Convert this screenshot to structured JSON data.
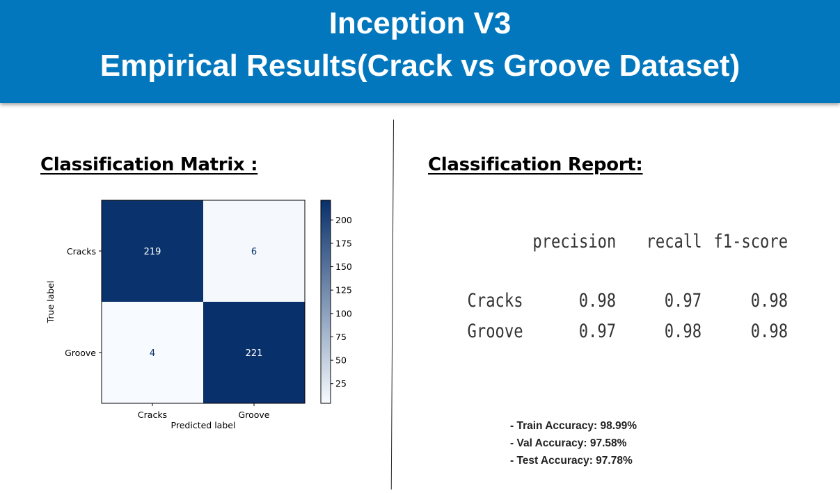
{
  "header": {
    "title_line1": "Inception V3",
    "title_line2": "Empirical  Results(Crack vs Groove Dataset)"
  },
  "matrix_section": {
    "title": "Classification Matrix :"
  },
  "report_section": {
    "title": "Classification Report:"
  },
  "colors": {
    "header_bg": "#0277bd",
    "cmap_low": "#f7fbff",
    "cmap_high": "#08306b"
  },
  "chart_data": [
    {
      "type": "heatmap",
      "x_categories": [
        "Cracks",
        "Groove"
      ],
      "y_categories": [
        "Cracks",
        "Groove"
      ],
      "values": [
        [
          219,
          6
        ],
        [
          4,
          221
        ]
      ],
      "xlabel": "Predicted label",
      "ylabel": "True label",
      "colorbar": {
        "min": 4,
        "max": 221,
        "ticks": [
          25,
          50,
          75,
          100,
          125,
          150,
          175,
          200
        ]
      },
      "colormap": "Blues"
    },
    {
      "type": "table",
      "columns": [
        "precision",
        "recall",
        "f1-score"
      ],
      "rows": [
        {
          "label": "Cracks",
          "values": [
            "0.98",
            "0.97",
            "0.98"
          ]
        },
        {
          "label": "Groove",
          "values": [
            "0.97",
            "0.98",
            "0.98"
          ]
        }
      ]
    }
  ],
  "accuracy": {
    "train": "- Train Accuracy: 98.99%",
    "val": "- Val Accuracy: 97.58%",
    "test": "- Test Accuracy:  97.78%"
  }
}
